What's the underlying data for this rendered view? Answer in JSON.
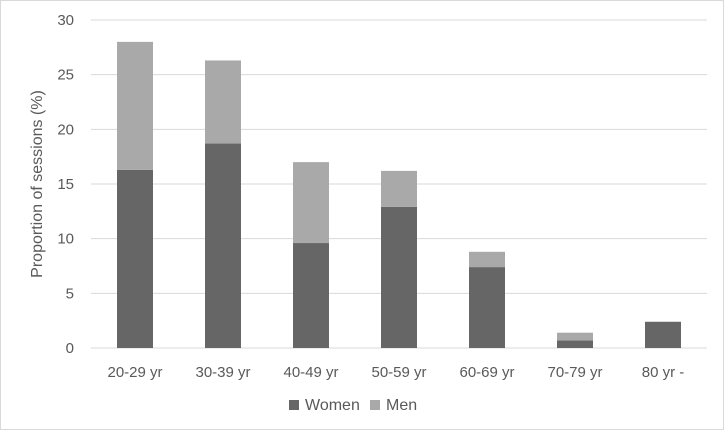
{
  "chart_data": {
    "type": "bar",
    "stacked": true,
    "title": "",
    "xlabel": "",
    "ylabel": "Proportion of sessions (%)",
    "ylim": [
      0,
      30
    ],
    "yticks": [
      0,
      5,
      10,
      15,
      20,
      25,
      30
    ],
    "grid": true,
    "legend_position": "bottom",
    "categories": [
      "20-29 yr",
      "30-39 yr",
      "40-49 yr",
      "50-59 yr",
      "60-69 yr",
      "70-79 yr",
      "80 yr -"
    ],
    "series": [
      {
        "name": "Women",
        "color": "#666666",
        "values": [
          16.3,
          18.7,
          9.6,
          12.9,
          7.4,
          0.7,
          2.4
        ]
      },
      {
        "name": "Men",
        "color": "#a9a9a9",
        "values": [
          11.7,
          7.6,
          7.4,
          3.3,
          1.4,
          0.7,
          0.0
        ]
      }
    ]
  }
}
